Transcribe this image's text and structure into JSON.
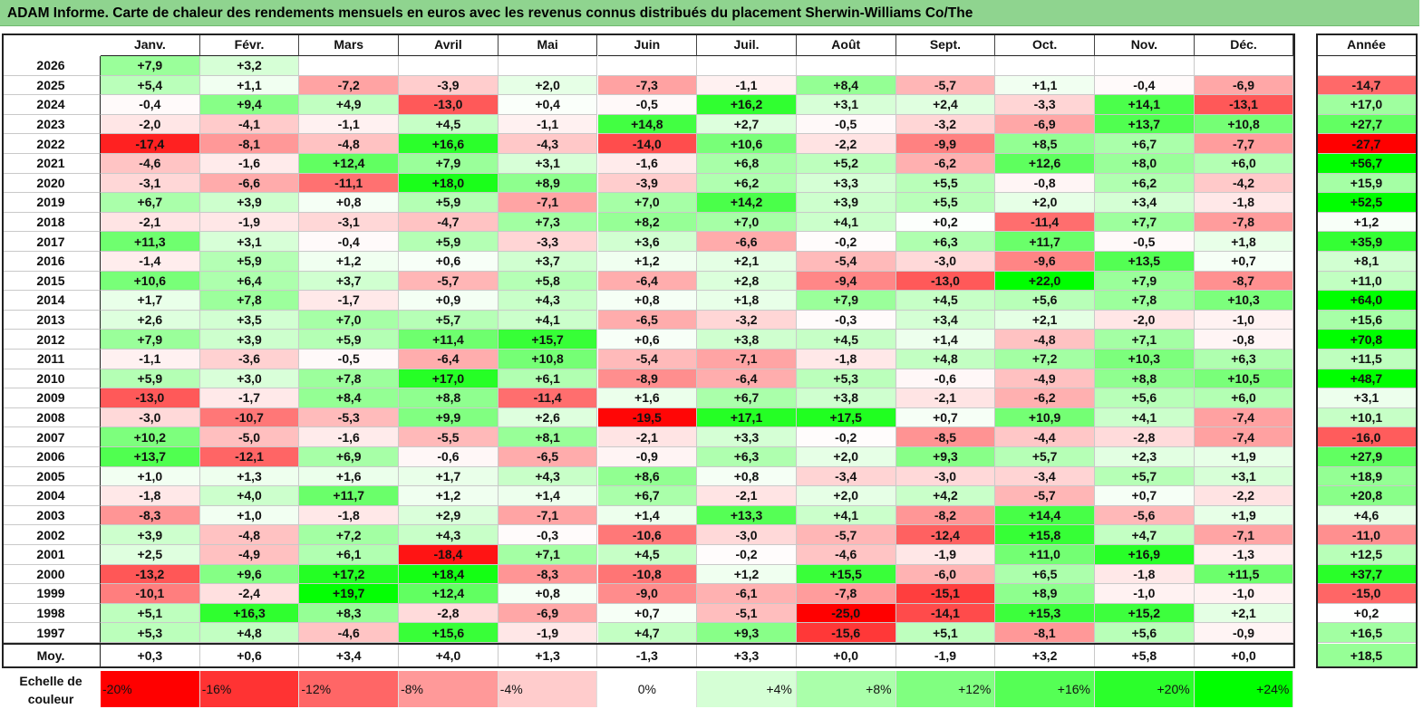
{
  "title": "ADAM Informe. Carte de chaleur des rendements mensuels en euros avec les revenus connus distribués du placement Sherwin-Williams Co/The",
  "colors": {
    "negative": "#ff0000",
    "zero": "#ffffff",
    "positive": "#00ff00",
    "title_bg": "#8fd48f"
  },
  "chart_data": {
    "type": "heatmap",
    "title": "ADAM Informe. Carte de chaleur des rendements mensuels en euros avec les revenus connus distribués du placement Sherwin-Williams Co/The",
    "months": [
      "Janv.",
      "Févr.",
      "Mars",
      "Avril",
      "Mai",
      "Juin",
      "Juil.",
      "Août",
      "Sept.",
      "Oct.",
      "Nov.",
      "Déc."
    ],
    "annual_header": "Année",
    "average_label": "Moy.",
    "rows": [
      {
        "year": "2026",
        "values": [
          "+7,9",
          "+3,2",
          "",
          "",
          "",
          "",
          "",
          "",
          "",
          "",
          "",
          ""
        ],
        "annual": ""
      },
      {
        "year": "2025",
        "values": [
          "+5,4",
          "+1,1",
          "-7,2",
          "-3,9",
          "+2,0",
          "-7,3",
          "-1,1",
          "+8,4",
          "-5,7",
          "+1,1",
          "-0,4",
          "-6,9"
        ],
        "annual": "-14,7"
      },
      {
        "year": "2024",
        "values": [
          "-0,4",
          "+9,4",
          "+4,9",
          "-13,0",
          "+0,4",
          "-0,5",
          "+16,2",
          "+3,1",
          "+2,4",
          "-3,3",
          "+14,1",
          "-13,1"
        ],
        "annual": "+17,0"
      },
      {
        "year": "2023",
        "values": [
          "-2,0",
          "-4,1",
          "-1,1",
          "+4,5",
          "-1,1",
          "+14,8",
          "+2,7",
          "-0,5",
          "-3,2",
          "-6,9",
          "+13,7",
          "+10,8"
        ],
        "annual": "+27,7"
      },
      {
        "year": "2022",
        "values": [
          "-17,4",
          "-8,1",
          "-4,8",
          "+16,6",
          "-4,3",
          "-14,0",
          "+10,6",
          "-2,2",
          "-9,9",
          "+8,5",
          "+6,7",
          "-7,7"
        ],
        "annual": "-27,7"
      },
      {
        "year": "2021",
        "values": [
          "-4,6",
          "-1,6",
          "+12,4",
          "+7,9",
          "+3,1",
          "-1,6",
          "+6,8",
          "+5,2",
          "-6,2",
          "+12,6",
          "+8,0",
          "+6,0"
        ],
        "annual": "+56,7"
      },
      {
        "year": "2020",
        "values": [
          "-3,1",
          "-6,6",
          "-11,1",
          "+18,0",
          "+8,9",
          "-3,9",
          "+6,2",
          "+3,3",
          "+5,5",
          "-0,8",
          "+6,2",
          "-4,2"
        ],
        "annual": "+15,9"
      },
      {
        "year": "2019",
        "values": [
          "+6,7",
          "+3,9",
          "+0,8",
          "+5,9",
          "-7,1",
          "+7,0",
          "+14,2",
          "+3,9",
          "+5,5",
          "+2,0",
          "+3,4",
          "-1,8"
        ],
        "annual": "+52,5"
      },
      {
        "year": "2018",
        "values": [
          "-2,1",
          "-1,9",
          "-3,1",
          "-4,7",
          "+7,3",
          "+8,2",
          "+7,0",
          "+4,1",
          "+0,2",
          "-11,4",
          "+7,7",
          "-7,8"
        ],
        "annual": "+1,2"
      },
      {
        "year": "2017",
        "values": [
          "+11,3",
          "+3,1",
          "-0,4",
          "+5,9",
          "-3,3",
          "+3,6",
          "-6,6",
          "-0,2",
          "+6,3",
          "+11,7",
          "-0,5",
          "+1,8"
        ],
        "annual": "+35,9"
      },
      {
        "year": "2016",
        "values": [
          "-1,4",
          "+5,9",
          "+1,2",
          "+0,6",
          "+3,7",
          "+1,2",
          "+2,1",
          "-5,4",
          "-3,0",
          "-9,6",
          "+13,5",
          "+0,7"
        ],
        "annual": "+8,1"
      },
      {
        "year": "2015",
        "values": [
          "+10,6",
          "+6,4",
          "+3,7",
          "-5,7",
          "+5,8",
          "-6,4",
          "+2,8",
          "-9,4",
          "-13,0",
          "+22,0",
          "+7,9",
          "-8,7"
        ],
        "annual": "+11,0"
      },
      {
        "year": "2014",
        "values": [
          "+1,7",
          "+7,8",
          "-1,7",
          "+0,9",
          "+4,3",
          "+0,8",
          "+1,8",
          "+7,9",
          "+4,5",
          "+5,6",
          "+7,8",
          "+10,3"
        ],
        "annual": "+64,0"
      },
      {
        "year": "2013",
        "values": [
          "+2,6",
          "+3,5",
          "+7,0",
          "+5,7",
          "+4,1",
          "-6,5",
          "-3,2",
          "-0,3",
          "+3,4",
          "+2,1",
          "-2,0",
          "-1,0"
        ],
        "annual": "+15,6"
      },
      {
        "year": "2012",
        "values": [
          "+7,9",
          "+3,9",
          "+5,9",
          "+11,4",
          "+15,7",
          "+0,6",
          "+3,8",
          "+4,5",
          "+1,4",
          "-4,8",
          "+7,1",
          "-0,8"
        ],
        "annual": "+70,8"
      },
      {
        "year": "2011",
        "values": [
          "-1,1",
          "-3,6",
          "-0,5",
          "-6,4",
          "+10,8",
          "-5,4",
          "-7,1",
          "-1,8",
          "+4,8",
          "+7,2",
          "+10,3",
          "+6,3"
        ],
        "annual": "+11,5"
      },
      {
        "year": "2010",
        "values": [
          "+5,9",
          "+3,0",
          "+7,8",
          "+17,0",
          "+6,1",
          "-8,9",
          "-6,4",
          "+5,3",
          "-0,6",
          "-4,9",
          "+8,8",
          "+10,5"
        ],
        "annual": "+48,7"
      },
      {
        "year": "2009",
        "values": [
          "-13,0",
          "-1,7",
          "+8,4",
          "+8,8",
          "-11,4",
          "+1,6",
          "+6,7",
          "+3,8",
          "-2,1",
          "-6,2",
          "+5,6",
          "+6,0"
        ],
        "annual": "+3,1"
      },
      {
        "year": "2008",
        "values": [
          "-3,0",
          "-10,7",
          "-5,3",
          "+9,9",
          "+2,6",
          "-19,5",
          "+17,1",
          "+17,5",
          "+0,7",
          "+10,9",
          "+4,1",
          "-7,4"
        ],
        "annual": "+10,1"
      },
      {
        "year": "2007",
        "values": [
          "+10,2",
          "-5,0",
          "-1,6",
          "-5,5",
          "+8,1",
          "-2,1",
          "+3,3",
          "-0,2",
          "-8,5",
          "-4,4",
          "-2,8",
          "-7,4"
        ],
        "annual": "-16,0"
      },
      {
        "year": "2006",
        "values": [
          "+13,7",
          "-12,1",
          "+6,9",
          "-0,6",
          "-6,5",
          "-0,9",
          "+6,3",
          "+2,0",
          "+9,3",
          "+5,7",
          "+2,3",
          "+1,9"
        ],
        "annual": "+27,9"
      },
      {
        "year": "2005",
        "values": [
          "+1,0",
          "+1,3",
          "+1,6",
          "+1,7",
          "+4,3",
          "+8,6",
          "+0,8",
          "-3,4",
          "-3,0",
          "-3,4",
          "+5,7",
          "+3,1"
        ],
        "annual": "+18,9"
      },
      {
        "year": "2004",
        "values": [
          "-1,8",
          "+4,0",
          "+11,7",
          "+1,2",
          "+1,4",
          "+6,7",
          "-2,1",
          "+2,0",
          "+4,2",
          "-5,7",
          "+0,7",
          "-2,2"
        ],
        "annual": "+20,8"
      },
      {
        "year": "2003",
        "values": [
          "-8,3",
          "+1,0",
          "-1,8",
          "+2,9",
          "-7,1",
          "+1,4",
          "+13,3",
          "+4,1",
          "-8,2",
          "+14,4",
          "-5,6",
          "+1,9"
        ],
        "annual": "+4,6"
      },
      {
        "year": "2002",
        "values": [
          "+3,9",
          "-4,8",
          "+7,2",
          "+4,3",
          "-0,3",
          "-10,6",
          "-3,0",
          "-5,7",
          "-12,4",
          "+15,8",
          "+4,7",
          "-7,1"
        ],
        "annual": "-11,0"
      },
      {
        "year": "2001",
        "values": [
          "+2,5",
          "-4,9",
          "+6,1",
          "-18,4",
          "+7,1",
          "+4,5",
          "-0,2",
          "-4,6",
          "-1,9",
          "+11,0",
          "+16,9",
          "-1,3"
        ],
        "annual": "+12,5"
      },
      {
        "year": "2000",
        "values": [
          "-13,2",
          "+9,6",
          "+17,2",
          "+18,4",
          "-8,3",
          "-10,8",
          "+1,2",
          "+15,5",
          "-6,0",
          "+6,5",
          "-1,8",
          "+11,5"
        ],
        "annual": "+37,7"
      },
      {
        "year": "1999",
        "values": [
          "-10,1",
          "-2,4",
          "+19,7",
          "+12,4",
          "+0,8",
          "-9,0",
          "-6,1",
          "-7,8",
          "-15,1",
          "+8,9",
          "-1,0",
          "-1,0"
        ],
        "annual": "-15,0"
      },
      {
        "year": "1998",
        "values": [
          "+5,1",
          "+16,3",
          "+8,3",
          "-2,8",
          "-6,9",
          "+0,7",
          "-5,1",
          "-25,0",
          "-14,1",
          "+15,3",
          "+15,2",
          "+2,1"
        ],
        "annual": "+0,2"
      },
      {
        "year": "1997",
        "values": [
          "+5,3",
          "+4,8",
          "-4,6",
          "+15,6",
          "-1,9",
          "+4,7",
          "+9,3",
          "-15,6",
          "+5,1",
          "-8,1",
          "+5,6",
          "-0,9"
        ],
        "annual": "+16,5"
      }
    ],
    "average": {
      "values": [
        "+0,3",
        "+0,6",
        "+3,4",
        "+4,0",
        "+1,3",
        "-1,3",
        "+3,3",
        "+0,0",
        "-1,9",
        "+3,2",
        "+5,8",
        "+0,0"
      ],
      "annual": "+18,5"
    },
    "scale": {
      "label_line1": "Echelle de",
      "label_line2": "couleur",
      "ticks": [
        "-20%",
        "-16%",
        "-12%",
        "-8%",
        "-4%",
        "0%",
        "+4%",
        "+8%",
        "+12%",
        "+16%",
        "+20%",
        "+24%"
      ]
    }
  }
}
